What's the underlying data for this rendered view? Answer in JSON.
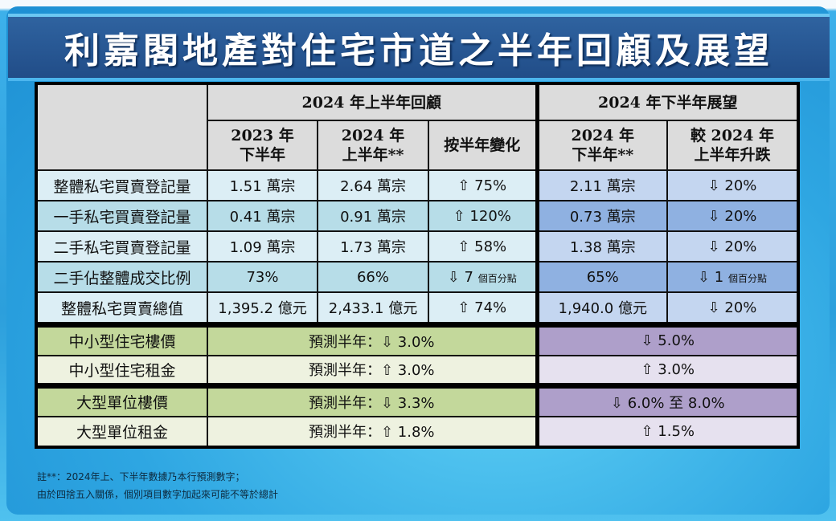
{
  "title": "利嘉閣地產對住宅市道之半年回顧及展望",
  "header": {
    "group_review": "2024 年上半年回顧",
    "group_outlook": "2024 年下半年展望",
    "columns": [
      {
        "line1": "2023 年",
        "line2": "下半年"
      },
      {
        "line1": "2024 年",
        "line2": "上半年**"
      },
      {
        "line1": "按半年變化",
        "line2": ""
      },
      {
        "line1": "2024 年",
        "line2": "下半年**"
      },
      {
        "line1": "較 2024 年",
        "line2": "上半年升跌"
      }
    ]
  },
  "icons": {
    "up": "⇧",
    "down": "⇩"
  },
  "rows": [
    {
      "label": "整體私宅買賣登記量",
      "h2_2023": "1.51 萬宗",
      "h1_2024": "2.64 萬宗",
      "change": "⇧ 75%",
      "change_unit": "",
      "h2_2024": "2.11 萬宗",
      "vs": "⇩ 20%",
      "vs_unit": ""
    },
    {
      "label": "一手私宅買賣登記量",
      "h2_2023": "0.41 萬宗",
      "h1_2024": "0.91 萬宗",
      "change": "⇧ 120%",
      "change_unit": "",
      "h2_2024": "0.73 萬宗",
      "vs": "⇩ 20%",
      "vs_unit": ""
    },
    {
      "label": "二手私宅買賣登記量",
      "h2_2023": "1.09 萬宗",
      "h1_2024": "1.73 萬宗",
      "change": "⇧ 58%",
      "change_unit": "",
      "h2_2024": "1.38 萬宗",
      "vs": "⇩ 20%",
      "vs_unit": ""
    },
    {
      "label": "二手佔整體成交比例",
      "h2_2023": "73%",
      "h1_2024": "66%",
      "change": "⇩ 7",
      "change_unit": "個百分點",
      "h2_2024": "65%",
      "vs": "⇩ 1",
      "vs_unit": "個百分點"
    },
    {
      "label": "整體私宅買賣總值",
      "h2_2023": "1,395.2 億元",
      "h1_2024": "2,433.1 億元",
      "change": "⇧ 74%",
      "change_unit": "",
      "h2_2024": "1,940.0 億元",
      "vs": "⇩ 20%",
      "vs_unit": ""
    }
  ],
  "price_rows": [
    {
      "label": "中小型住宅樓價",
      "review": "預測半年：⇩ 3.0%",
      "outlook": "⇩ 5.0%"
    },
    {
      "label": "中小型住宅租金",
      "review": "預測半年：⇧ 3.0%",
      "outlook": "⇧ 3.0%"
    },
    {
      "label": "大型單位樓價",
      "review": "預測半年：⇩ 3.3%",
      "outlook": "⇩ 6.0% 至 8.0%"
    },
    {
      "label": "大型單位租金",
      "review": "預測半年：⇧ 1.8%",
      "outlook": "⇧ 1.5%"
    }
  ],
  "notes": [
    "註**：2024年上、下半年數據乃本行預測數字；",
    "由於四捨五入關係，個別項目數字加起來可能不等於總計"
  ]
}
